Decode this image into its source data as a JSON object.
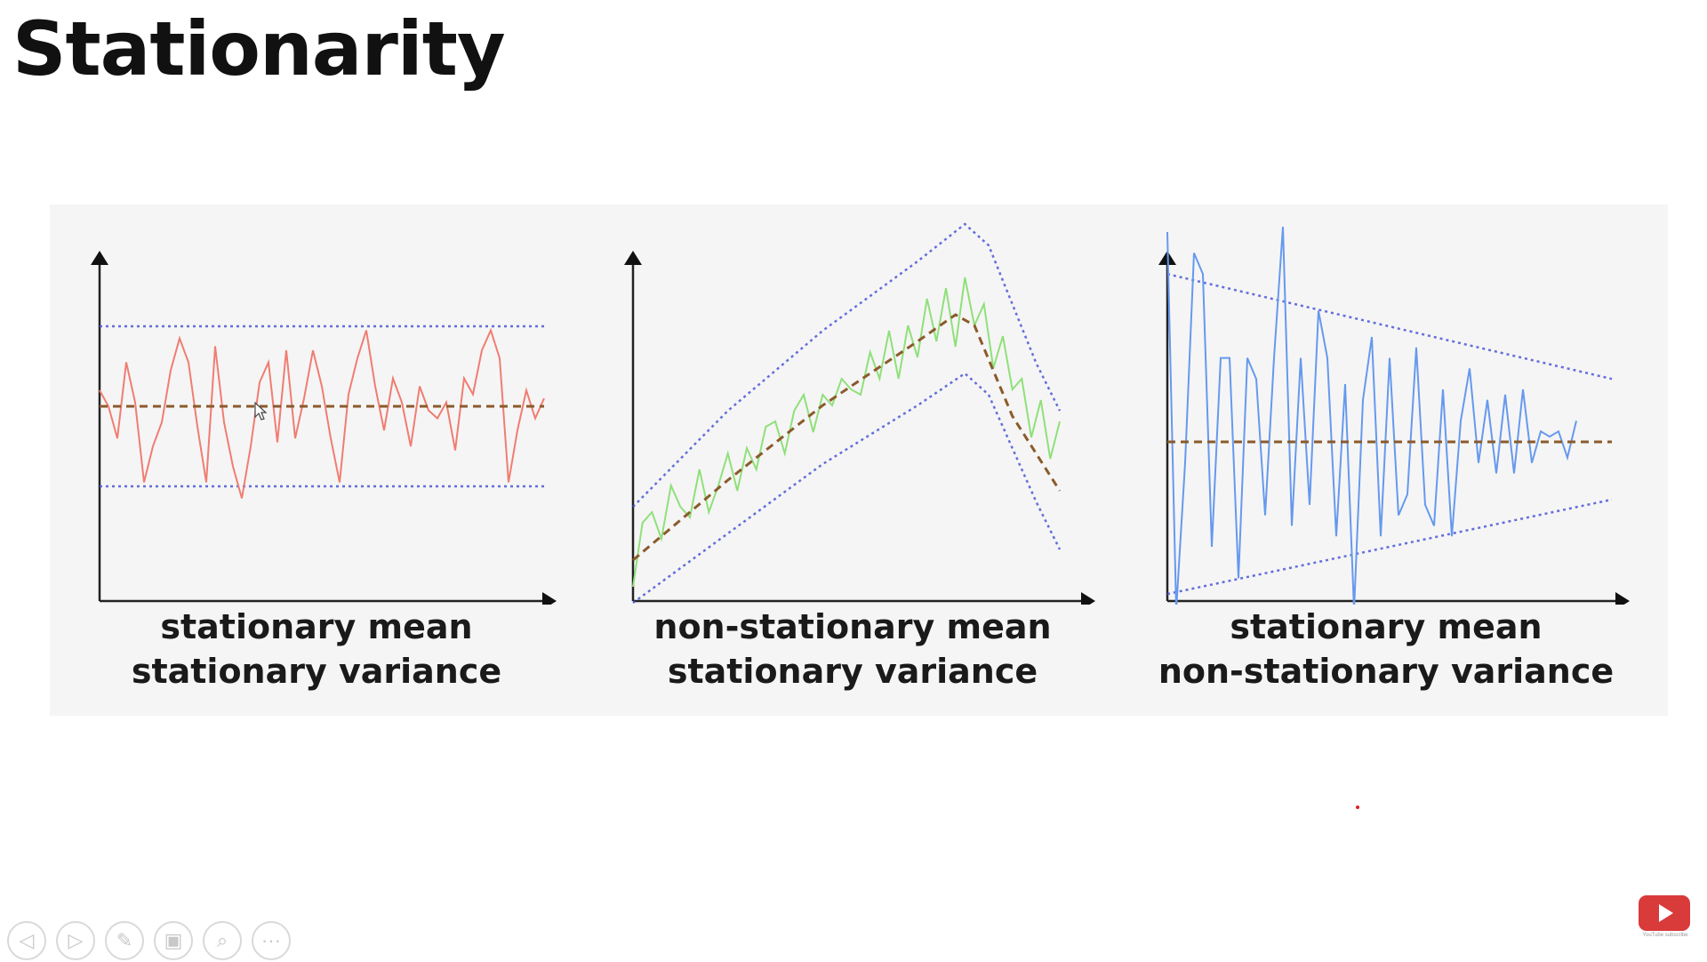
{
  "slide": {
    "title": "Stationarity"
  },
  "colors": {
    "stationary_series": "#f07d72",
    "trend_series": "#8fe07a",
    "variance_series": "#6699ee",
    "mean_line": "#8b5a2b",
    "bounds": "#4a56d6",
    "axes": "#222222"
  },
  "chart_data": [
    {
      "type": "line",
      "title": "",
      "caption_line1": "stationary mean",
      "caption_line2": "stationary variance",
      "ylim": [
        -2,
        2
      ],
      "mean": [
        [
          0,
          0
        ],
        [
          100,
          0
        ]
      ],
      "upper_bound": [
        [
          0,
          1
        ],
        [
          100,
          1
        ]
      ],
      "lower_bound": [
        [
          0,
          -1
        ],
        [
          100,
          -1
        ]
      ],
      "series": [
        [
          0,
          0.2
        ],
        [
          2,
          0
        ],
        [
          4,
          -0.4
        ],
        [
          6,
          0.55
        ],
        [
          8,
          0.05
        ],
        [
          10,
          -0.95
        ],
        [
          12,
          -0.5
        ],
        [
          14,
          -0.2
        ],
        [
          16,
          0.45
        ],
        [
          18,
          0.85
        ],
        [
          20,
          0.55
        ],
        [
          22,
          -0.25
        ],
        [
          24,
          -0.95
        ],
        [
          26,
          0.75
        ],
        [
          28,
          -0.2
        ],
        [
          30,
          -0.75
        ],
        [
          32,
          -1.15
        ],
        [
          34,
          -0.5
        ],
        [
          36,
          0.3
        ],
        [
          38,
          0.55
        ],
        [
          40,
          -0.45
        ],
        [
          42,
          0.7
        ],
        [
          44,
          -0.4
        ],
        [
          46,
          0.1
        ],
        [
          48,
          0.7
        ],
        [
          50,
          0.25
        ],
        [
          52,
          -0.4
        ],
        [
          54,
          -0.95
        ],
        [
          56,
          0.15
        ],
        [
          58,
          0.6
        ],
        [
          60,
          0.95
        ],
        [
          62,
          0.25
        ],
        [
          64,
          -0.3
        ],
        [
          66,
          0.35
        ],
        [
          68,
          0.05
        ],
        [
          70,
          -0.5
        ],
        [
          72,
          0.25
        ],
        [
          74,
          -0.05
        ],
        [
          76,
          -0.15
        ],
        [
          78,
          0.05
        ],
        [
          80,
          -0.55
        ],
        [
          82,
          0.35
        ],
        [
          84,
          0.15
        ],
        [
          86,
          0.7
        ],
        [
          88,
          0.95
        ],
        [
          90,
          0.6
        ],
        [
          92,
          -0.95
        ],
        [
          94,
          -0.3
        ],
        [
          96,
          0.2
        ],
        [
          98,
          -0.15
        ],
        [
          100,
          0.1
        ]
      ]
    },
    {
      "type": "line",
      "title": "",
      "caption_line1": "non-stationary mean",
      "caption_line2": "stationary variance",
      "mean": [
        [
          0,
          0.5
        ],
        [
          20,
          2
        ],
        [
          40,
          3.4
        ],
        [
          60,
          4.6
        ],
        [
          68,
          5.1
        ],
        [
          72,
          4.9
        ],
        [
          80,
          3.2
        ],
        [
          90,
          1.8
        ]
      ],
      "upper_bound": [
        [
          0,
          1.5
        ],
        [
          20,
          3.3
        ],
        [
          40,
          4.8
        ],
        [
          60,
          6.1
        ],
        [
          70,
          6.8
        ],
        [
          75,
          6.4
        ],
        [
          85,
          4.2
        ],
        [
          90,
          3.3
        ]
      ],
      "lower_bound": [
        [
          0,
          -0.3
        ],
        [
          20,
          1.0
        ],
        [
          40,
          2.3
        ],
        [
          60,
          3.4
        ],
        [
          70,
          4.0
        ],
        [
          75,
          3.6
        ],
        [
          85,
          1.6
        ],
        [
          90,
          0.7
        ]
      ],
      "series": [
        [
          0,
          0
        ],
        [
          2,
          1.2
        ],
        [
          4,
          1.4
        ],
        [
          6,
          0.9
        ],
        [
          8,
          1.9
        ],
        [
          10,
          1.5
        ],
        [
          12,
          1.3
        ],
        [
          14,
          2.2
        ],
        [
          16,
          1.4
        ],
        [
          18,
          1.9
        ],
        [
          20,
          2.5
        ],
        [
          22,
          1.8
        ],
        [
          24,
          2.6
        ],
        [
          26,
          2.2
        ],
        [
          28,
          3.0
        ],
        [
          30,
          3.1
        ],
        [
          32,
          2.5
        ],
        [
          34,
          3.3
        ],
        [
          36,
          3.6
        ],
        [
          38,
          2.9
        ],
        [
          40,
          3.6
        ],
        [
          42,
          3.4
        ],
        [
          44,
          3.9
        ],
        [
          46,
          3.7
        ],
        [
          48,
          3.6
        ],
        [
          50,
          4.4
        ],
        [
          52,
          3.9
        ],
        [
          54,
          4.8
        ],
        [
          56,
          3.9
        ],
        [
          58,
          4.9
        ],
        [
          60,
          4.3
        ],
        [
          62,
          5.4
        ],
        [
          64,
          4.6
        ],
        [
          66,
          5.6
        ],
        [
          68,
          4.5
        ],
        [
          70,
          5.8
        ],
        [
          72,
          4.9
        ],
        [
          74,
          5.3
        ],
        [
          76,
          4.1
        ],
        [
          78,
          4.7
        ],
        [
          80,
          3.7
        ],
        [
          82,
          3.9
        ],
        [
          84,
          2.8
        ],
        [
          86,
          3.5
        ],
        [
          88,
          2.4
        ],
        [
          90,
          3.1
        ]
      ]
    },
    {
      "type": "line",
      "title": "",
      "caption_line1": "stationary mean",
      "caption_line2": "non-stationary variance",
      "mean": [
        [
          0,
          0
        ],
        [
          100,
          0
        ]
      ],
      "upper_bound": [
        [
          0,
          1.6
        ],
        [
          100,
          0.6
        ]
      ],
      "lower_bound": [
        [
          0,
          -1.45
        ],
        [
          100,
          -0.55
        ]
      ],
      "series": [
        [
          0,
          2.0
        ],
        [
          2,
          -1.6
        ],
        [
          4,
          -0.2
        ],
        [
          6,
          1.8
        ],
        [
          8,
          1.6
        ],
        [
          10,
          -1.0
        ],
        [
          12,
          0.8
        ],
        [
          14,
          0.8
        ],
        [
          16,
          -1.3
        ],
        [
          18,
          0.8
        ],
        [
          20,
          0.6
        ],
        [
          22,
          -0.7
        ],
        [
          24,
          0.8
        ],
        [
          26,
          2.05
        ],
        [
          28,
          -0.8
        ],
        [
          30,
          0.8
        ],
        [
          32,
          -0.6
        ],
        [
          34,
          1.25
        ],
        [
          36,
          0.8
        ],
        [
          38,
          -0.9
        ],
        [
          40,
          0.55
        ],
        [
          42,
          -1.6
        ],
        [
          44,
          0.4
        ],
        [
          46,
          1.0
        ],
        [
          48,
          -0.9
        ],
        [
          50,
          0.8
        ],
        [
          52,
          -0.7
        ],
        [
          54,
          -0.5
        ],
        [
          56,
          0.9
        ],
        [
          58,
          -0.6
        ],
        [
          60,
          -0.8
        ],
        [
          62,
          0.5
        ],
        [
          64,
          -0.9
        ],
        [
          66,
          0.2
        ],
        [
          68,
          0.7
        ],
        [
          70,
          -0.2
        ],
        [
          72,
          0.4
        ],
        [
          74,
          -0.3
        ],
        [
          76,
          0.45
        ],
        [
          78,
          -0.3
        ],
        [
          80,
          0.5
        ],
        [
          82,
          -0.2
        ],
        [
          84,
          0.1
        ],
        [
          86,
          0.05
        ],
        [
          88,
          0.1
        ],
        [
          90,
          -0.15
        ],
        [
          92,
          0.2
        ]
      ]
    }
  ],
  "toolbar": {
    "buttons": [
      {
        "name": "previous-slide-button",
        "icon": "arrow-left-icon",
        "glyph": "◁"
      },
      {
        "name": "next-slide-button",
        "icon": "arrow-right-icon",
        "glyph": "▷"
      },
      {
        "name": "pen-tool-button",
        "icon": "pen-icon",
        "glyph": "✎"
      },
      {
        "name": "see-all-slides-button",
        "icon": "slides-grid-icon",
        "glyph": "▣"
      },
      {
        "name": "zoom-button",
        "icon": "magnifier-icon",
        "glyph": "⌕"
      },
      {
        "name": "more-options-button",
        "icon": "ellipsis-icon",
        "glyph": "···"
      }
    ]
  },
  "youtube": {
    "subscribe_text": "YouTube subscribe"
  }
}
